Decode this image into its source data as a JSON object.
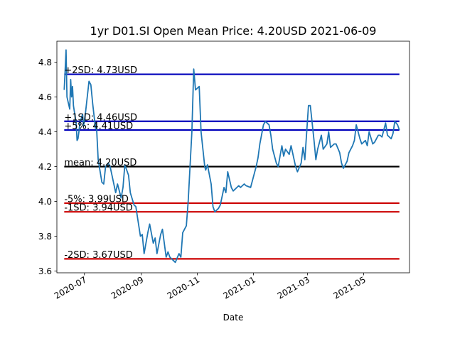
{
  "chart_data": {
    "type": "line",
    "title": "1yr D01.SI Open Mean Price: 4.20USD 2021-06-09",
    "xlabel": "Date",
    "ylabel": "",
    "x_range": [
      "2020-06-01",
      "2021-06-20"
    ],
    "ylim": [
      3.59,
      4.92
    ],
    "y_ticks": [
      3.6,
      3.8,
      4.0,
      4.2,
      4.4,
      4.6,
      4.8
    ],
    "y_tick_labels": [
      "3.6",
      "3.8",
      "4.0",
      "4.2",
      "4.4",
      "4.6",
      "4.8"
    ],
    "x_ticks": [
      "2020-07-01",
      "2020-09-01",
      "2020-11-01",
      "2021-01-01",
      "2021-03-01",
      "2021-05-01"
    ],
    "x_tick_labels": [
      "2020-07",
      "2020-09",
      "2020-11",
      "2021-01",
      "2021-03",
      "2021-05"
    ],
    "grid": false,
    "line_color": "#1f77b4",
    "reference_lines": [
      {
        "label": "+2SD: 4.73USD",
        "value": 4.73,
        "color": "#0000bb"
      },
      {
        "label": "+1SD: 4.46USD",
        "value": 4.46,
        "color": "#0000bb"
      },
      {
        "label": "+5%: 4.41USD",
        "value": 4.41,
        "color": "#0000bb"
      },
      {
        "label": "mean: 4.20USD",
        "value": 4.2,
        "color": "#000000"
      },
      {
        "label": "-5%: 3.99USD",
        "value": 3.99,
        "color": "#cc0000"
      },
      {
        "label": "-1SD: 3.94USD",
        "value": 3.94,
        "color": "#cc0000"
      },
      {
        "label": "-2SD: 3.67USD",
        "value": 3.67,
        "color": "#cc0000"
      }
    ],
    "series": [
      {
        "x": [
          "2020-06-09",
          "2020-06-10",
          "2020-06-11",
          "2020-06-12",
          "2020-06-15",
          "2020-06-16",
          "2020-06-17",
          "2020-06-18",
          "2020-06-19",
          "2020-06-22",
          "2020-06-23",
          "2020-06-24",
          "2020-06-25",
          "2020-06-26",
          "2020-06-29",
          "2020-06-30",
          "2020-07-02",
          "2020-07-06",
          "2020-07-08",
          "2020-07-10",
          "2020-07-13",
          "2020-07-14",
          "2020-07-16",
          "2020-07-20",
          "2020-07-22",
          "2020-07-24",
          "2020-07-27",
          "2020-07-29",
          "2020-07-31",
          "2020-08-04",
          "2020-08-06",
          "2020-08-10",
          "2020-08-12",
          "2020-08-14",
          "2020-08-18",
          "2020-08-20",
          "2020-08-24",
          "2020-08-26",
          "2020-08-28",
          "2020-08-31",
          "2020-09-02",
          "2020-09-04",
          "2020-09-08",
          "2020-09-10",
          "2020-09-14",
          "2020-09-16",
          "2020-09-18",
          "2020-09-22",
          "2020-09-24",
          "2020-09-28",
          "2020-09-30",
          "2020-10-02",
          "2020-10-06",
          "2020-10-08",
          "2020-10-12",
          "2020-10-14",
          "2020-10-16",
          "2020-10-20",
          "2020-10-22",
          "2020-10-26",
          "2020-10-28",
          "2020-10-30",
          "2020-11-03",
          "2020-11-05",
          "2020-11-09",
          "2020-11-10",
          "2020-11-12",
          "2020-11-16",
          "2020-11-18",
          "2020-11-20",
          "2020-11-24",
          "2020-11-26",
          "2020-11-30",
          "2020-12-02",
          "2020-12-04",
          "2020-12-08",
          "2020-12-10",
          "2020-12-14",
          "2020-12-16",
          "2020-12-18",
          "2020-12-22",
          "2020-12-24",
          "2020-12-29",
          "2021-01-04",
          "2021-01-06",
          "2021-01-08",
          "2021-01-12",
          "2021-01-14",
          "2021-01-18",
          "2021-01-20",
          "2021-01-22",
          "2021-01-26",
          "2021-01-28",
          "2021-02-01",
          "2021-02-03",
          "2021-02-05",
          "2021-02-09",
          "2021-02-11",
          "2021-02-16",
          "2021-02-18",
          "2021-02-22",
          "2021-02-24",
          "2021-02-26",
          "2021-03-02",
          "2021-03-04",
          "2021-03-08",
          "2021-03-10",
          "2021-03-12",
          "2021-03-16",
          "2021-03-18",
          "2021-03-22",
          "2021-03-24",
          "2021-03-26",
          "2021-03-30",
          "2021-04-01",
          "2021-04-05",
          "2021-04-07",
          "2021-04-09",
          "2021-04-13",
          "2021-04-15",
          "2021-04-19",
          "2021-04-21",
          "2021-04-23",
          "2021-04-27",
          "2021-04-29",
          "2021-05-03",
          "2021-05-05",
          "2021-05-07",
          "2021-05-11",
          "2021-05-13",
          "2021-05-17",
          "2021-05-19",
          "2021-05-21",
          "2021-05-25",
          "2021-05-27",
          "2021-05-31",
          "2021-06-02",
          "2021-06-04",
          "2021-06-07",
          "2021-06-09"
        ],
        "y": [
          4.64,
          4.75,
          4.87,
          4.6,
          4.53,
          4.7,
          4.6,
          4.66,
          4.55,
          4.45,
          4.35,
          4.36,
          4.4,
          4.45,
          4.5,
          4.43,
          4.5,
          4.69,
          4.67,
          4.56,
          4.42,
          4.45,
          4.24,
          4.11,
          4.1,
          4.2,
          4.22,
          4.2,
          4.15,
          4.05,
          4.1,
          4.02,
          4.08,
          4.21,
          4.15,
          4.05,
          3.98,
          3.97,
          3.9,
          3.8,
          3.81,
          3.7,
          3.82,
          3.87,
          3.76,
          3.79,
          3.7,
          3.81,
          3.84,
          3.68,
          3.71,
          3.68,
          3.66,
          3.65,
          3.7,
          3.68,
          3.82,
          3.86,
          4.0,
          4.4,
          4.76,
          4.64,
          4.66,
          4.4,
          4.2,
          4.18,
          4.21,
          4.1,
          3.97,
          3.94,
          3.96,
          3.98,
          4.08,
          4.05,
          4.17,
          4.08,
          4.06,
          4.08,
          4.09,
          4.08,
          4.1,
          4.09,
          4.08,
          4.2,
          4.25,
          4.33,
          4.44,
          4.46,
          4.44,
          4.38,
          4.3,
          4.22,
          4.2,
          4.32,
          4.26,
          4.3,
          4.27,
          4.32,
          4.2,
          4.17,
          4.22,
          4.31,
          4.24,
          4.55,
          4.55,
          4.35,
          4.24,
          4.3,
          4.38,
          4.3,
          4.33,
          4.4,
          4.31,
          4.33,
          4.33,
          4.28,
          4.22,
          4.19,
          4.23,
          4.28,
          4.32,
          4.35,
          4.44,
          4.36,
          4.33,
          4.35,
          4.32,
          4.4,
          4.33,
          4.34,
          4.38,
          4.38,
          4.37,
          4.45,
          4.38,
          4.36,
          4.39,
          4.46,
          4.44,
          4.41
        ]
      }
    ]
  }
}
